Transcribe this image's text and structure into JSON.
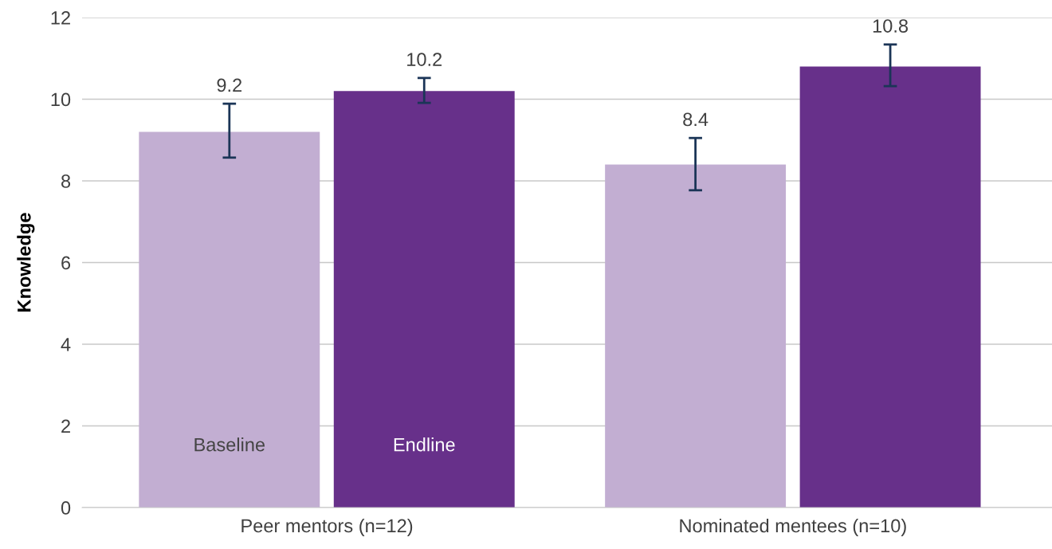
{
  "chart_data": {
    "type": "bar",
    "ylabel": "Knowledge",
    "categories": [
      "Peer mentors (n=12)",
      "Nominated mentees (n=10)"
    ],
    "series": [
      {
        "name": "Baseline",
        "color": "#c2aed2",
        "values": [
          9.2,
          8.4
        ],
        "errors": [
          [
            8.57,
            9.89
          ],
          [
            7.77,
            9.05
          ]
        ]
      },
      {
        "name": "Endline",
        "color": "#67308a",
        "values": [
          10.2,
          10.8
        ],
        "errors": [
          [
            9.91,
            10.52
          ],
          [
            10.32,
            11.34
          ]
        ]
      }
    ],
    "ylim": [
      0,
      12
    ],
    "yticks": [
      0,
      2,
      4,
      6,
      8,
      10,
      12
    ],
    "grid": "y",
    "data_labels": true,
    "legend": false
  }
}
